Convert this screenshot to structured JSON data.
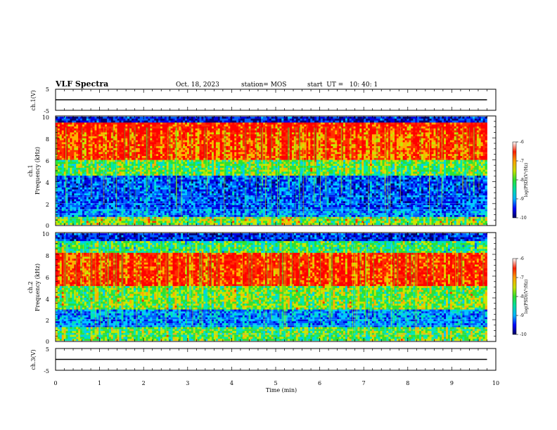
{
  "header": {
    "title": "VLF Spectra",
    "date": "Oct. 18, 2023",
    "station": "station= MOS",
    "start": "start  UT =   10: 40: 1"
  },
  "chart_data": [
    {
      "type": "line",
      "name": "ch1-waveform",
      "ylabel": "ch.1(V)",
      "ylim": [
        -5,
        5
      ],
      "yticks": [
        "5",
        "-5"
      ],
      "x": [
        0,
        9.8
      ],
      "y": [
        0,
        0
      ]
    },
    {
      "type": "heatmap",
      "name": "ch1-spectrogram",
      "ylabel": "ch.1\nFrequency (kHz)",
      "ylim": [
        0,
        10
      ],
      "yticks": [
        "10",
        "8",
        "6",
        "4",
        "2",
        "0"
      ],
      "xlim": [
        0,
        10
      ],
      "data_xmax": 9.8,
      "colorbar": {
        "label": "log(PSD)(V²/Hz)",
        "range": [
          -10,
          -6
        ],
        "ticks": [
          "-6",
          "-7",
          "-8",
          "-9",
          "-10"
        ]
      }
    },
    {
      "type": "heatmap",
      "name": "ch2-spectrogram",
      "ylabel": "ch.2\nFrequency (kHz)",
      "ylim": [
        0,
        10
      ],
      "yticks": [
        "10",
        "8",
        "6",
        "4",
        "2",
        "0"
      ],
      "xlim": [
        0,
        10
      ],
      "data_xmax": 9.8,
      "colorbar": {
        "label": "log(PSD)(V²/Hz)",
        "range": [
          -10,
          -6
        ],
        "ticks": [
          "-6",
          "-7",
          "-8",
          "-9",
          "-10"
        ]
      }
    },
    {
      "type": "line",
      "name": "ch3-waveform",
      "ylabel": "ch.3(V)",
      "ylim": [
        -5,
        5
      ],
      "yticks": [
        "5",
        "-5"
      ],
      "x": [
        0,
        9.8
      ],
      "y": [
        0,
        0
      ]
    }
  ],
  "xaxis": {
    "label": "Time (min)",
    "xlim": [
      0,
      10
    ],
    "ticks": [
      "0",
      "1",
      "2",
      "3",
      "4",
      "5",
      "6",
      "7",
      "8",
      "9",
      "10"
    ]
  },
  "colors": {
    "low": "#000080",
    "mid_low": "#00c8ff",
    "mid": "#28e028",
    "mid_high": "#ffa000",
    "high": "#ff0000"
  }
}
